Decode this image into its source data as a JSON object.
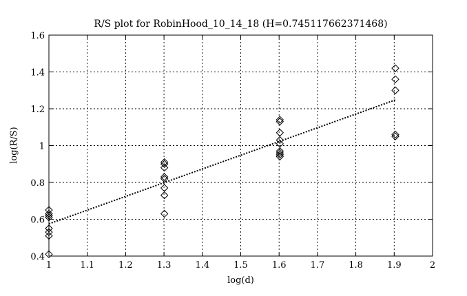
{
  "chart_data": {
    "type": "scatter",
    "title": "R/S plot for RobinHood_10_14_18 (H=0.745117662371468)",
    "xlabel": "log(d)",
    "ylabel": "log(R/S)",
    "xlim": [
      1,
      2
    ],
    "ylim": [
      0.4,
      1.6
    ],
    "xticks": [
      1,
      1.1,
      1.2,
      1.3,
      1.4,
      1.5,
      1.6,
      1.7,
      1.8,
      1.9,
      2
    ],
    "xtick_labels": [
      "1",
      "1.1",
      "1.2",
      "1.3",
      "1.4",
      "1.5",
      "1.6",
      "1.7",
      "1.8",
      "1.9",
      "2"
    ],
    "yticks": [
      0.4,
      0.6,
      0.8,
      1.0,
      1.2,
      1.4,
      1.6
    ],
    "ytick_labels": [
      "0.4",
      "0.6",
      "0.8",
      "1",
      "1.2",
      "1.4",
      "1.6"
    ],
    "grid": true,
    "marker": "diamond",
    "series": [
      {
        "marker": "diamond",
        "points": [
          [
            1,
            0.65
          ],
          [
            1,
            0.63
          ],
          [
            1,
            0.62
          ],
          [
            1,
            0.61
          ],
          [
            1,
            0.55
          ],
          [
            1,
            0.53
          ],
          [
            1,
            0.51
          ],
          [
            1,
            0.41
          ],
          [
            1.301,
            0.91
          ],
          [
            1.301,
            0.9
          ],
          [
            1.301,
            0.88
          ],
          [
            1.301,
            0.83
          ],
          [
            1.301,
            0.82
          ],
          [
            1.301,
            0.77
          ],
          [
            1.301,
            0.73
          ],
          [
            1.301,
            0.63
          ],
          [
            1.602,
            1.14
          ],
          [
            1.602,
            1.13
          ],
          [
            1.602,
            1.07
          ],
          [
            1.602,
            1.03
          ],
          [
            1.602,
            1.01
          ],
          [
            1.602,
            0.97
          ],
          [
            1.602,
            0.96
          ],
          [
            1.602,
            0.95
          ],
          [
            1.602,
            0.94
          ],
          [
            1.903,
            1.42
          ],
          [
            1.903,
            1.36
          ],
          [
            1.903,
            1.3
          ],
          [
            1.903,
            1.06
          ],
          [
            1.903,
            1.05
          ]
        ]
      }
    ],
    "fit_line": {
      "slope": 0.745117662371468,
      "x": [
        1,
        1.903
      ],
      "y": [
        0.575,
        1.248
      ]
    }
  }
}
